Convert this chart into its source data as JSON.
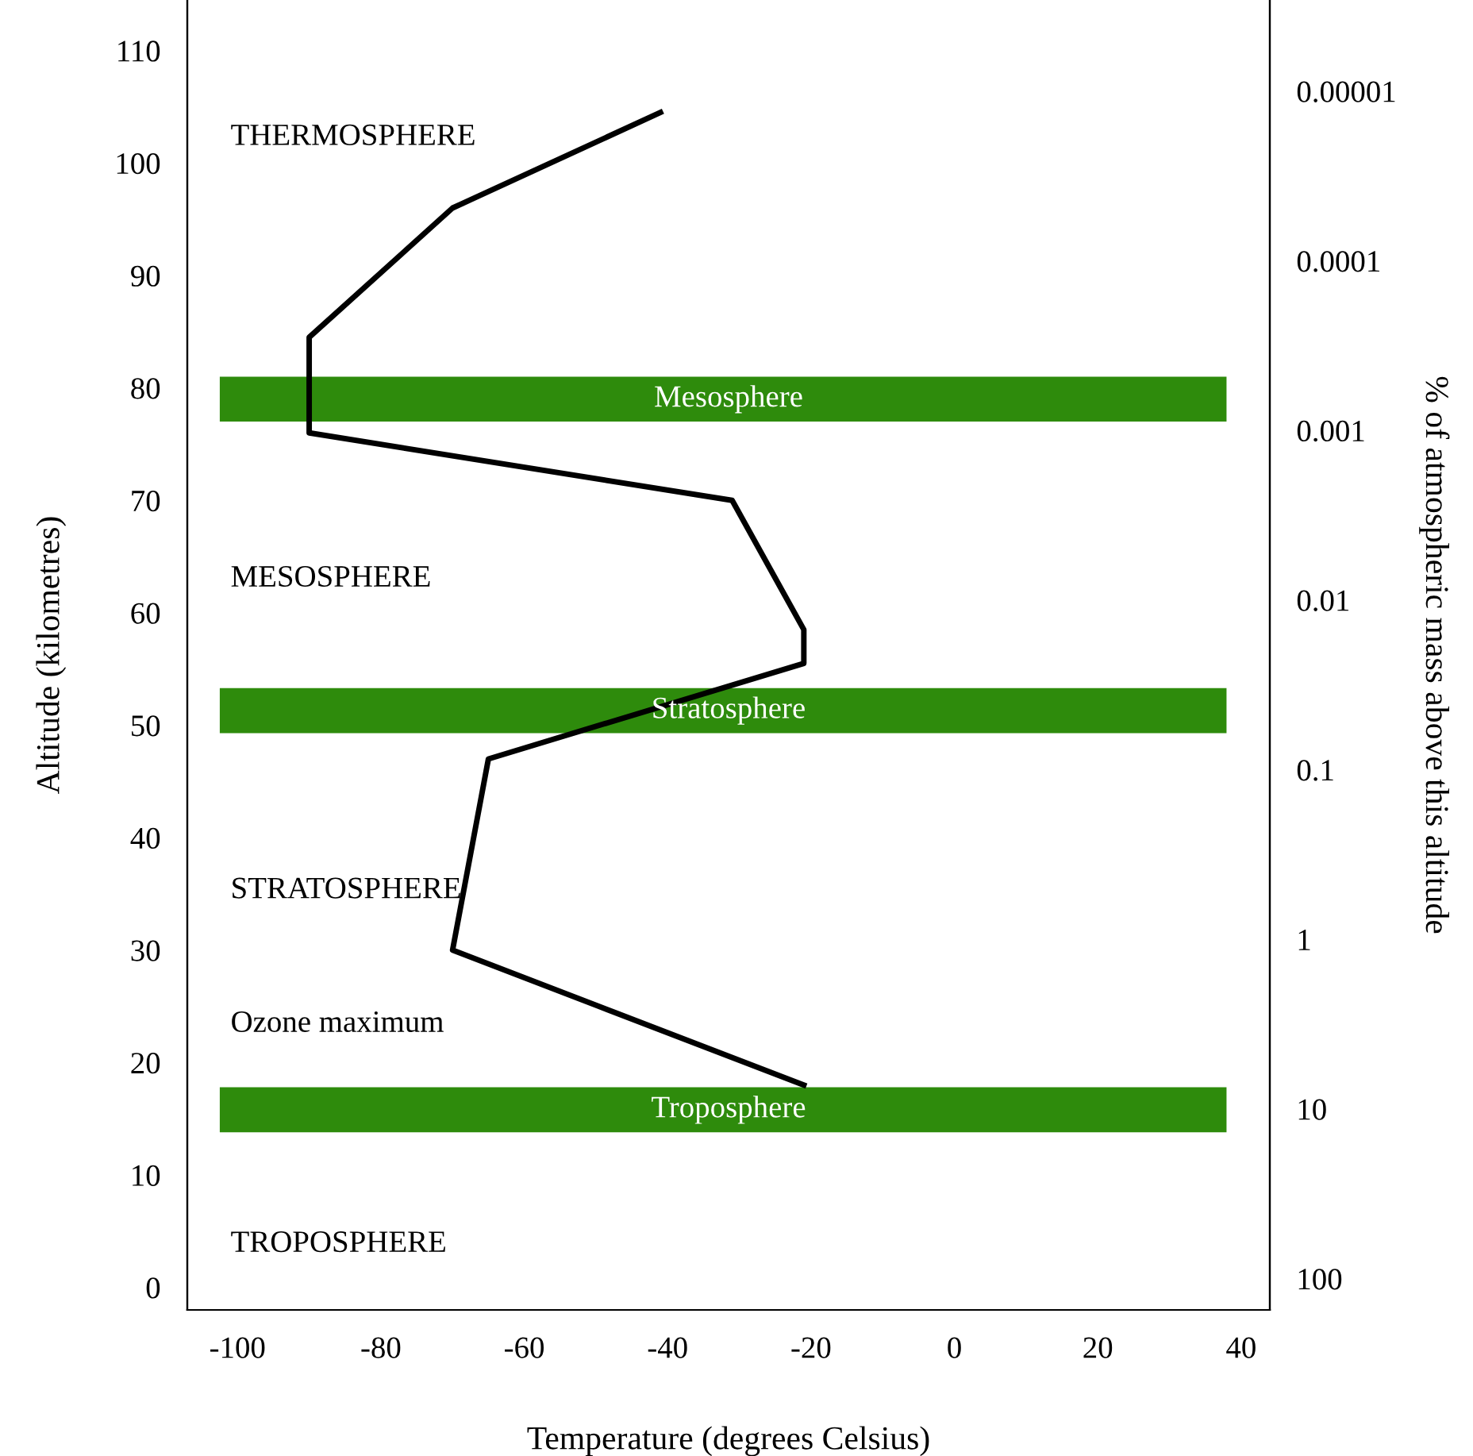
{
  "chart_data": {
    "type": "line",
    "xlabel": "Temperature (degrees Celsius)",
    "ylabel": "Altitude (kilometres)",
    "y2label": "% of atmospheric mass above this altitude",
    "series": [
      {
        "color": "#000000",
        "x": [
          -41,
          -70,
          -90,
          -90,
          -31,
          -21,
          -21,
          -65,
          -70,
          -21
        ],
        "values": [
          104.5,
          96,
          84.5,
          76,
          70,
          58.5,
          55.5,
          47,
          30,
          18
        ]
      }
    ],
    "xlim": [
      -107,
      44
    ],
    "xticks": [
      -100,
      -80,
      -60,
      -40,
      -20,
      0,
      20,
      40
    ],
    "ylim": [
      -2,
      114.5
    ],
    "yticks": [
      0,
      10,
      20,
      30,
      40,
      50,
      60,
      70,
      80,
      90,
      100,
      110
    ],
    "log": "y2",
    "y2lim": [
      153,
      2.9e-06
    ],
    "y2ticks": [
      {
        "value": 1e-05,
        "label": "0.00001"
      },
      {
        "value": 0.0001,
        "label": "0.0001"
      },
      {
        "value": 0.001,
        "label": "0.001"
      },
      0.01,
      0.1,
      1,
      10,
      100
    ],
    "bands": [
      {
        "axis": "y",
        "from": 77,
        "to": 81,
        "label": "Mesosphere",
        "color": "#2e8b0c"
      },
      {
        "axis": "y",
        "from": 49.3,
        "to": 53.3,
        "label": "Stratosphere",
        "color": "#2e8b0c"
      },
      {
        "axis": "y",
        "from": 13.8,
        "to": 17.8,
        "label": "Troposphere",
        "color": "#2e8b0c"
      }
    ],
    "annotations": [
      "THERMOSPHERE",
      "MESOSPHERE",
      "STRATOSPHERE",
      "Ozone maximum",
      "TROPOSPHERE"
    ],
    "grid": false,
    "legend": false,
    "marker": "none",
    "line_style": "solid"
  }
}
